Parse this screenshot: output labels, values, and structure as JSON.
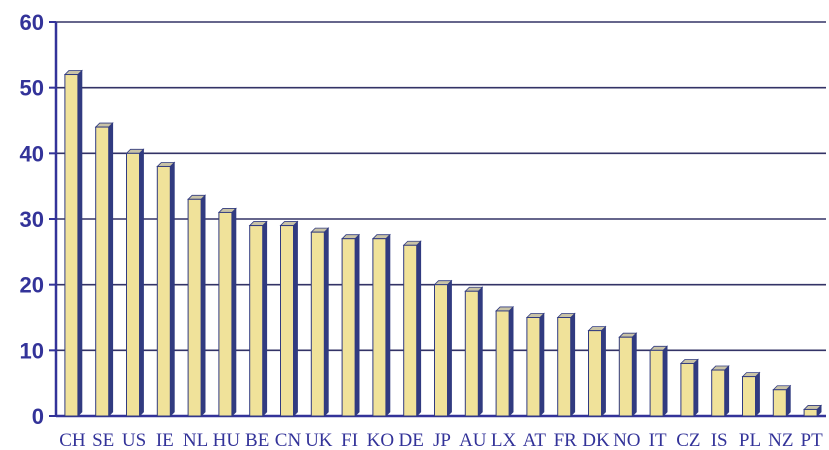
{
  "chart_data": {
    "type": "bar",
    "categories": [
      "CH",
      "SE",
      "US",
      "IE",
      "NL",
      "HU",
      "BE",
      "CN",
      "UK",
      "FI",
      "KO",
      "DE",
      "JP",
      "AU",
      "LX",
      "AT",
      "FR",
      "DK",
      "NO",
      "IT",
      "CZ",
      "IS",
      "PL",
      "NZ",
      "PT"
    ],
    "values": [
      52,
      44,
      40,
      38,
      33,
      31,
      29,
      29,
      28,
      27,
      27,
      26,
      20,
      19,
      16,
      15,
      15,
      13,
      12,
      10,
      8,
      7,
      6,
      4,
      1
    ],
    "title": "",
    "xlabel": "",
    "ylabel": "",
    "ylim": [
      0,
      60
    ],
    "yticks": [
      0,
      10,
      20,
      30,
      40,
      50,
      60
    ],
    "grid": true,
    "legend": "none",
    "colors": {
      "bar_front": "#F0E29A",
      "bar_side": "#313B80",
      "bar_top": "#C9C3A6",
      "axis": "#333399",
      "grid": "#333366",
      "text": "#333399"
    }
  }
}
